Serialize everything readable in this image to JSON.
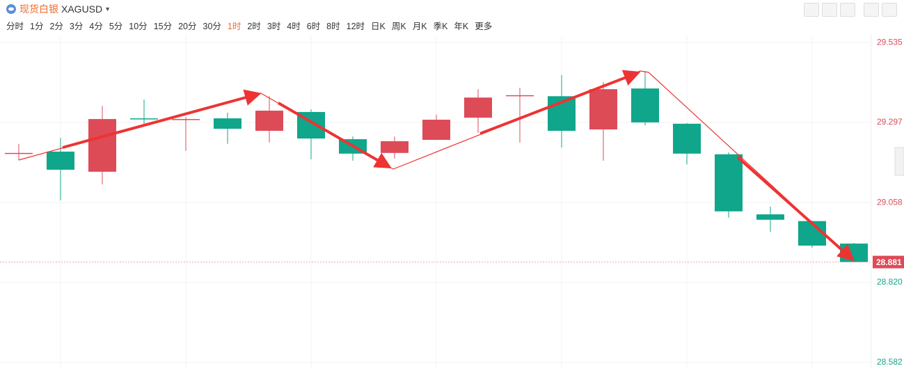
{
  "header": {
    "symbol_name": "现货白银",
    "symbol": "XAGUSD"
  },
  "toolbar": {
    "periods": [
      "分时",
      "1分",
      "2分",
      "3分",
      "4分",
      "5分",
      "10分",
      "15分",
      "20分",
      "30分",
      "1时",
      "2时",
      "3时",
      "4时",
      "6时",
      "8时",
      "12时",
      "日K",
      "周K",
      "月K",
      "季K",
      "年K",
      "更多"
    ],
    "active_period": 10
  },
  "chart_data": {
    "type": "candlestick",
    "categories": [
      null,
      null,
      null,
      null,
      null,
      null,
      null,
      null,
      null,
      null,
      null,
      null,
      null,
      null,
      null,
      null,
      null,
      null,
      null,
      null,
      null
    ],
    "open": [
      29.204,
      29.21,
      29.15,
      29.309,
      29.305,
      29.309,
      29.272,
      29.328,
      29.247,
      29.206,
      29.245,
      29.311,
      29.375,
      29.375,
      29.276,
      29.398,
      29.293,
      29.202,
      29.023,
      29.003,
      28.936
    ],
    "high": [
      29.233,
      29.251,
      29.346,
      29.365,
      29.313,
      29.326,
      29.375,
      29.336,
      29.255,
      29.255,
      29.32,
      29.396,
      29.4,
      29.438,
      29.417,
      29.45,
      29.295,
      29.208,
      29.046,
      29.005,
      28.938
    ],
    "low": [
      29.185,
      29.065,
      29.112,
      29.288,
      29.212,
      29.233,
      29.237,
      29.187,
      29.183,
      29.189,
      29.245,
      29.266,
      29.237,
      29.222,
      29.183,
      29.288,
      29.172,
      29.013,
      28.971,
      28.924,
      28.881
    ],
    "close": [
      29.206,
      29.156,
      29.307,
      29.307,
      29.307,
      29.278,
      29.332,
      29.249,
      29.204,
      29.241,
      29.305,
      29.371,
      29.378,
      29.272,
      29.396,
      29.297,
      29.204,
      29.032,
      29.007,
      28.93,
      28.881
    ],
    "up_color": "#dd4b57",
    "down_color": "#0fa68b",
    "ylim": [
      28.563,
      29.558
    ],
    "yticks": [
      {
        "value": 29.535,
        "label": "29.535"
      },
      {
        "value": 29.297,
        "label": "29.297"
      },
      {
        "value": 29.058,
        "label": "29.058"
      },
      {
        "value": 28.82,
        "label": "28.820"
      },
      {
        "value": 28.582,
        "label": "28.582"
      }
    ],
    "last_price": {
      "value": 28.881,
      "label": "28.881"
    },
    "grid": true
  }
}
